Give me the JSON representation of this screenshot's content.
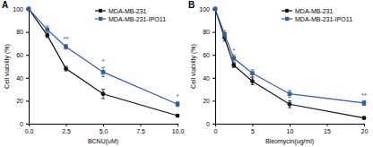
{
  "chart_data": [
    {
      "type": "line",
      "title": "A",
      "x_label": "BCNU(uM)",
      "y_label": "Cell viability (%)",
      "x": [
        0,
        1.25,
        2.5,
        5,
        10
      ],
      "xlim": [
        0,
        10
      ],
      "xticks": [
        {
          "value": 0,
          "label": "0.0"
        },
        {
          "value": 2.5,
          "label": "2.5"
        },
        {
          "value": 5,
          "label": "5.0"
        },
        {
          "value": 7.5,
          "label": "7.5"
        },
        {
          "value": 10,
          "label": "10.0"
        }
      ],
      "ylim": [
        0,
        100
      ],
      "yticks": [
        0,
        20,
        40,
        60,
        80,
        100
      ],
      "legend": "top-right",
      "series": [
        {
          "name": "MDA-MB-231",
          "color": "#111111",
          "marker": "circle",
          "values": [
            100,
            77,
            48,
            26,
            7
          ],
          "errors": [
            0,
            2,
            2,
            4,
            1
          ]
        },
        {
          "name": "MDA-MB-231-IPO11",
          "color": "#2f5fa8",
          "marker": "square",
          "values": [
            100,
            82,
            67,
            45,
            17
          ],
          "errors": [
            0,
            3,
            2,
            4,
            2
          ]
        }
      ],
      "annotations": [
        {
          "text": "**",
          "x": 2.5,
          "y": 72
        },
        {
          "text": "*",
          "x": 5,
          "y": 52
        },
        {
          "text": "*",
          "x": 10,
          "y": 22
        }
      ]
    },
    {
      "type": "line",
      "title": "B",
      "x_label": "Bleomycin(ug/ml)",
      "y_label": "Cell viability (%)",
      "x": [
        0,
        1.25,
        2.5,
        5,
        10,
        20
      ],
      "xlim": [
        0,
        20
      ],
      "xticks": [
        0,
        5,
        10,
        15,
        20
      ],
      "ylim": [
        0,
        100
      ],
      "yticks": [
        0,
        20,
        40,
        60,
        80,
        100
      ],
      "legend": "top-right",
      "series": [
        {
          "name": "MDA-MB-231",
          "color": "#111111",
          "marker": "circle",
          "values": [
            100,
            75,
            51,
            37,
            17,
            5
          ],
          "errors": [
            0,
            3,
            2,
            3,
            3,
            1
          ]
        },
        {
          "name": "MDA-MB-231-IPO11",
          "color": "#2f5fa8",
          "marker": "square",
          "values": [
            100,
            78,
            57,
            44,
            26,
            18
          ],
          "errors": [
            0,
            3,
            3,
            3,
            3,
            2
          ]
        }
      ],
      "annotations": [
        {
          "text": "*",
          "x": 2.5,
          "y": 62
        },
        {
          "text": "**",
          "x": 20,
          "y": 23
        }
      ]
    }
  ]
}
